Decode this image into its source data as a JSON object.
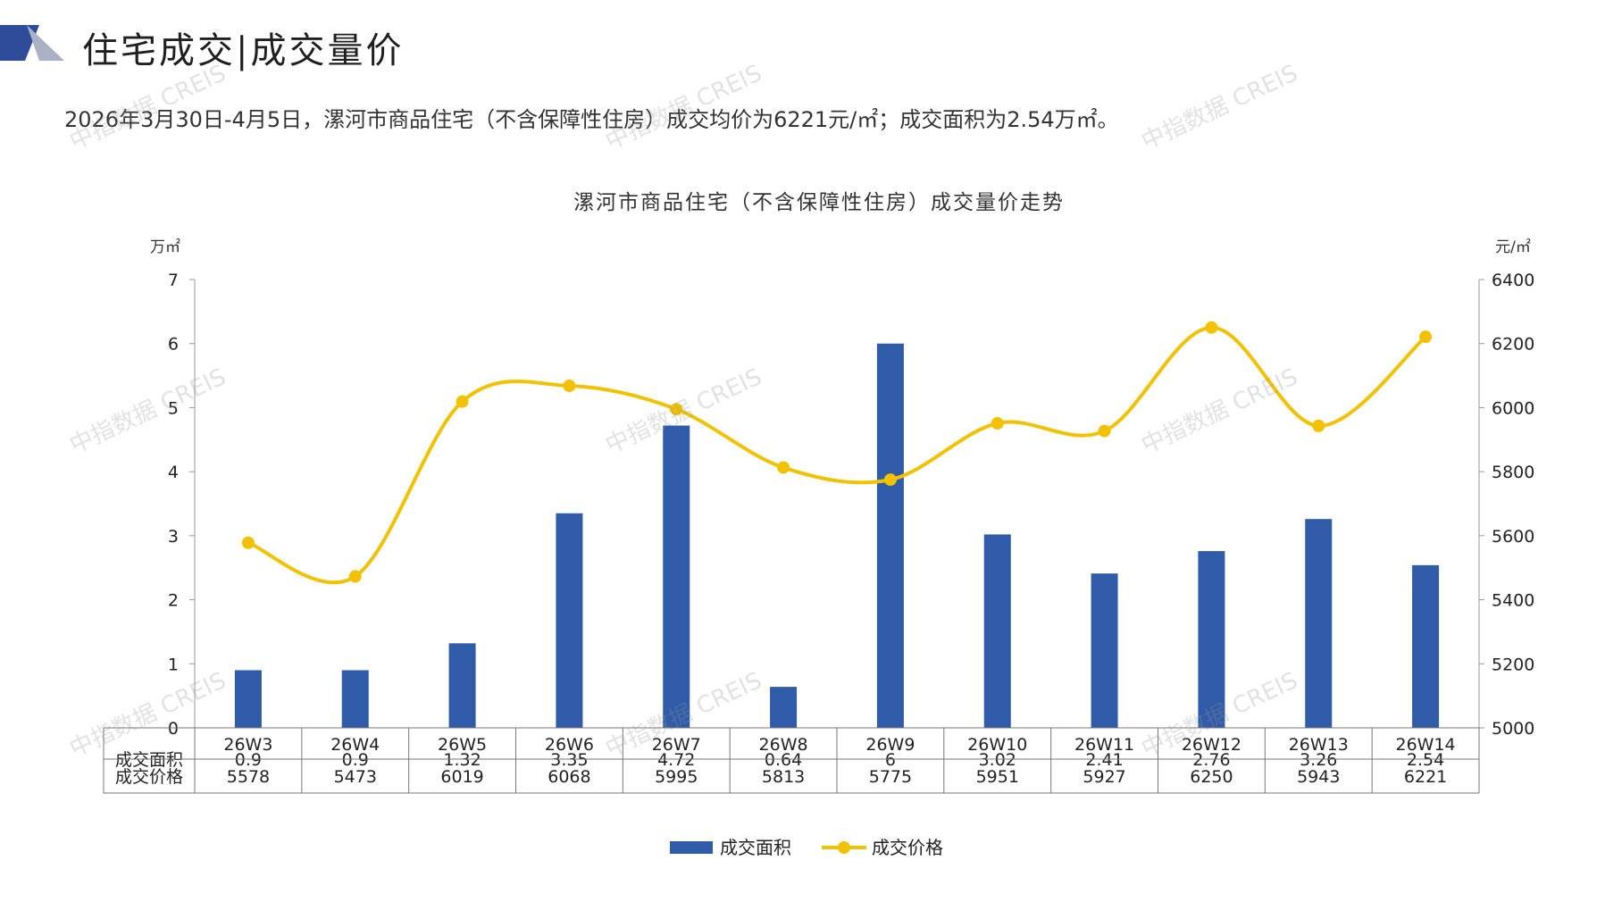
{
  "header": {
    "title": "住宅成交|成交量价",
    "subtitle": "2026年3月30日-4月5日，漯河市商品住宅（不含保障性住房）成交均价为6221元/㎡；成交面积为2.54万㎡。"
  },
  "watermark": "中指数据 CREIS",
  "colors": {
    "bar": "#2F5BA8",
    "line": "#F2C200",
    "logo_dark": "#2E4C9A",
    "logo_light": "#A9B1C4"
  },
  "chart_data": {
    "type": "bar",
    "title": "漯河市商品住宅（不含保障性住房）成交量价走势",
    "categories": [
      "26W3",
      "26W4",
      "26W5",
      "26W6",
      "26W7",
      "26W8",
      "26W9",
      "26W10",
      "26W11",
      "26W12",
      "26W13",
      "26W14"
    ],
    "y_left": {
      "unit": "万㎡",
      "ticks": [
        "0",
        "1",
        "2",
        "3",
        "4",
        "5",
        "6",
        "7"
      ],
      "range": [
        0,
        7
      ]
    },
    "y_right": {
      "unit": "元/㎡",
      "ticks": [
        "5000",
        "5200",
        "5400",
        "5600",
        "5800",
        "6000",
        "6200",
        "6400"
      ],
      "range": [
        5000,
        6400
      ]
    },
    "series": [
      {
        "name": "成交面积",
        "type": "bar",
        "axis": "left",
        "values": [
          0.9,
          0.9,
          1.32,
          3.35,
          4.72,
          0.64,
          6,
          3.02,
          2.41,
          2.76,
          3.26,
          2.54
        ]
      },
      {
        "name": "成交价格",
        "type": "line",
        "axis": "right",
        "smooth": true,
        "values": [
          5578,
          5473,
          6019,
          6068,
          5995,
          5813,
          5775,
          5951,
          5927,
          6250,
          5943,
          6221
        ]
      }
    ],
    "table": {
      "rows": [
        {
          "label": "成交面积",
          "cells": [
            "0.9",
            "0.9",
            "1.32",
            "3.35",
            "4.72",
            "0.64",
            "6",
            "3.02",
            "2.41",
            "2.76",
            "3.26",
            "2.54"
          ]
        },
        {
          "label": "成交价格",
          "cells": [
            "5578",
            "5473",
            "6019",
            "6068",
            "5995",
            "5813",
            "5775",
            "5951",
            "5927",
            "6250",
            "5943",
            "6221"
          ]
        }
      ]
    },
    "legend_position": "bottom"
  }
}
